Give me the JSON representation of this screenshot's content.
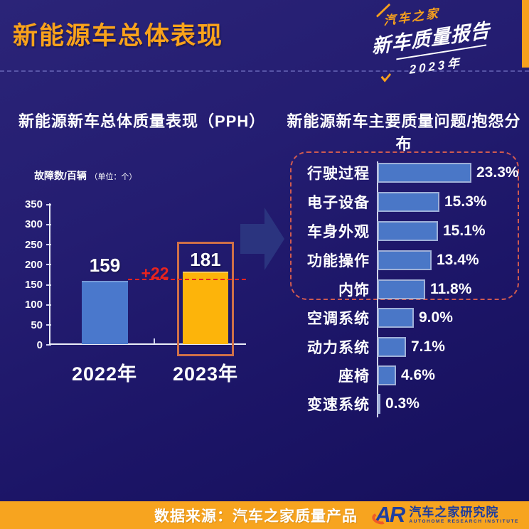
{
  "colors": {
    "bg_top": "#2b2478",
    "bg_bottom": "#150f5a",
    "accent_orange": "#f9a21b",
    "bar_blue": "#4a78cc",
    "bar_orange": "#fdb40a",
    "hbar_blue": "#4a77c7",
    "alert_red": "#e8241f",
    "highlight_box_border": "#cf7048",
    "dashed_group_border": "#cf5a50",
    "footer_bg": "#f7a41f",
    "org_blue": "#1d3c9e"
  },
  "header": {
    "title": "新能源车总体表现",
    "logo_brand": "汽车之家",
    "logo_product": "新车质量报告",
    "logo_year": "2023年"
  },
  "left_chart": {
    "title": "新能源新车总体质量表现（PPH）",
    "unit_main": "故障数/百辆",
    "unit_sub": "（单位：个）",
    "y_ticks": [
      "350",
      "300",
      "250",
      "200",
      "150",
      "100",
      "50",
      "0"
    ],
    "bars": [
      {
        "label": "2022年",
        "value_label": "159"
      },
      {
        "label": "2023年",
        "value_label": "181"
      }
    ],
    "delta_label": "+22"
  },
  "right_chart": {
    "title": "新能源新车主要质量问题/抱怨分布",
    "rows": [
      {
        "label": "行驶过程",
        "value_label": "23.3%"
      },
      {
        "label": "电子设备",
        "value_label": "15.3%"
      },
      {
        "label": "车身外观",
        "value_label": "15.1%"
      },
      {
        "label": "功能操作",
        "value_label": "13.4%"
      },
      {
        "label": "内饰",
        "value_label": "11.8%"
      },
      {
        "label": "空调系统",
        "value_label": "9.0%"
      },
      {
        "label": "动力系统",
        "value_label": "7.1%"
      },
      {
        "label": "座椅",
        "value_label": "4.6%"
      },
      {
        "label": "变速系统",
        "value_label": "0.3%"
      }
    ]
  },
  "footer": {
    "source": "数据来源：汽车之家质量产品",
    "logo_letters": "AR",
    "org_name": "汽车之家研究院",
    "org_subtitle": "AUTOHOME RESEARCH INSTITUTE"
  },
  "chart_data": [
    {
      "type": "bar",
      "title": "新能源新车总体质量表现（PPH）",
      "ylabel": "故障数/百辆（单位：个）",
      "categories": [
        "2022年",
        "2023年"
      ],
      "values": [
        159,
        181
      ],
      "bar_colors": [
        "#4a78cc",
        "#fdb40a"
      ],
      "ylim": [
        0,
        350
      ],
      "yticks": [
        0,
        50,
        100,
        150,
        200,
        250,
        300,
        350
      ],
      "grid": false,
      "annotations": {
        "delta": "+22",
        "reference_line_value": 159,
        "reference_line_style": "red dashed",
        "highlighted_category": "2023年"
      }
    },
    {
      "type": "bar",
      "orientation": "horizontal",
      "title": "新能源新车主要质量问题/抱怨分布",
      "categories": [
        "行驶过程",
        "电子设备",
        "车身外观",
        "功能操作",
        "内饰",
        "空调系统",
        "动力系统",
        "座椅",
        "变速系统"
      ],
      "values": [
        23.3,
        15.3,
        15.1,
        13.4,
        11.8,
        9.0,
        7.1,
        4.6,
        0.3
      ],
      "unit": "%",
      "grid": false,
      "highlight_group_categories": [
        "行驶过程",
        "电子设备",
        "车身外观",
        "功能操作",
        "内饰"
      ],
      "highlight_group_style": "dashed rounded box"
    }
  ]
}
